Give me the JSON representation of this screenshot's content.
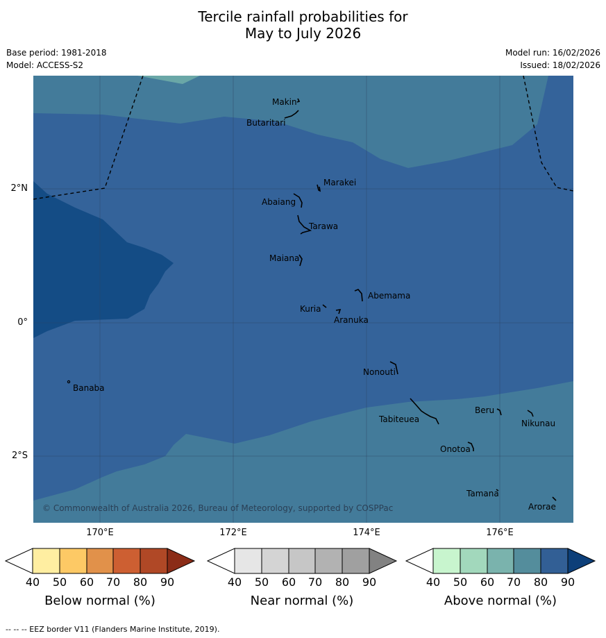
{
  "title_line1": "Tercile rainfall probabilities for",
  "title_line2": "May to July 2026",
  "base_period": "Base period: 1981-2018",
  "model": "Model: ACCESS-S2",
  "model_run": "Model run: 16/02/2026",
  "issued": "Issued: 18/02/2026",
  "lat_labels": [
    "2°N",
    "0°",
    "2°S"
  ],
  "lon_labels": [
    "170°E",
    "172°E",
    "174°E",
    "176°E"
  ],
  "places": [
    "Makin",
    "Butaritari",
    "Marakei",
    "Abaiang",
    "Tarawa",
    "Maiana",
    "Abemama",
    "Kuria",
    "Aranuka",
    "Banaba",
    "Nonouti",
    "Beru",
    "Nikunau",
    "Tabiteuea",
    "Onotoa",
    "Tamana",
    "Arorae"
  ],
  "copyright": "© Commonwealth of Australia 2026, Bureau of Meteorology, supported by COSPPac",
  "colorbars": [
    {
      "label": "Below normal (%)",
      "ticks": [
        "40",
        "50",
        "60",
        "70",
        "80",
        "90"
      ],
      "colors": [
        "#ffeea1",
        "#fdc965",
        "#e1914a",
        "#cd5f32",
        "#b04826",
        "#8b2c17"
      ]
    },
    {
      "label": "Near normal (%)",
      "ticks": [
        "40",
        "50",
        "60",
        "70",
        "80",
        "90"
      ],
      "colors": [
        "#e6e6e6",
        "#d4d4d4",
        "#c6c6c6",
        "#b2b2b2",
        "#a0a0a0",
        "#828282"
      ]
    },
    {
      "label": "Above normal (%)",
      "ticks": [
        "40",
        "50",
        "60",
        "70",
        "80",
        "90"
      ],
      "colors": [
        "#c8f5ce",
        "#a2d8bc",
        "#7ab3ad",
        "#548d9c",
        "#325f95",
        "#0d3f79"
      ]
    }
  ],
  "footer": "--  --  -- EEZ border V11 (Flanders Marine Institute, 2019)."
}
